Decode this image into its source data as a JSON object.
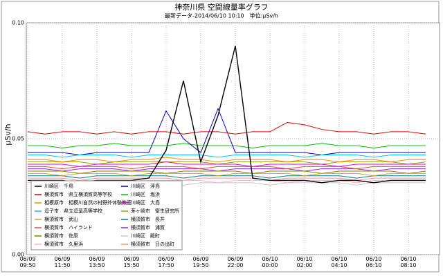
{
  "chart_data": {
    "type": "line",
    "title": "神奈川県 空間線量率グラフ",
    "subtitle": "最新データ-2014/06/10 10:10　単位:μSv/h",
    "y_label": "μSv/h",
    "x": [
      "06/09 09:50",
      null,
      "06/09 11:50",
      null,
      "06/09 13:50",
      null,
      "06/09 15:50",
      null,
      "06/09 17:50",
      null,
      "06/09 19:50",
      null,
      "06/09 22:00",
      null,
      "06/10 00:00",
      null,
      "06/10 02:00",
      null,
      "06/10 04:10",
      null,
      "06/10 06:10",
      null,
      "06/10 08:10",
      null
    ],
    "ylim": [
      0,
      0.1
    ],
    "yticks": [
      {
        "value": 0,
        "label": "0.00"
      },
      {
        "value": 0.05,
        "label": "0.05"
      },
      {
        "value": 0.1,
        "label": "0.10"
      }
    ],
    "grid": true,
    "legend": "lower-left",
    "series": [
      {
        "name": "川崎区　千鳥",
        "color": "#000000",
        "values": [
          0.032,
          0.032,
          0.032,
          0.031,
          0.032,
          0.032,
          0.032,
          0.033,
          0.045,
          0.075,
          0.04,
          0.06,
          0.09,
          0.033,
          0.032,
          0.032,
          0.032,
          0.031,
          0.032,
          0.032,
          0.031,
          0.032,
          0.032,
          0.032
        ]
      },
      {
        "name": "横須賀市　県立横須賀高等学校",
        "color": "#e00000",
        "values": [
          0.053,
          0.052,
          0.053,
          0.053,
          0.052,
          0.053,
          0.052,
          0.053,
          0.053,
          0.052,
          0.053,
          0.053,
          0.052,
          0.053,
          0.053,
          0.057,
          0.056,
          0.054,
          0.053,
          0.053,
          0.052,
          0.053,
          0.053,
          0.052
        ]
      },
      {
        "name": "相模原市　相模川自然の村野外体験教室",
        "color": "#ff8c00",
        "values": [
          0.041,
          0.041,
          0.04,
          0.041,
          0.041,
          0.04,
          0.041,
          0.041,
          0.042,
          0.041,
          0.041,
          0.04,
          0.041,
          0.041,
          0.041,
          0.04,
          0.041,
          0.041,
          0.04,
          0.041,
          0.041,
          0.04,
          0.041,
          0.041
        ]
      },
      {
        "name": "逗子市　県立逗葉高等学校",
        "color": "#00bfff",
        "values": [
          0.043,
          0.043,
          0.042,
          0.043,
          0.043,
          0.043,
          0.042,
          0.043,
          0.043,
          0.043,
          0.043,
          0.042,
          0.043,
          0.043,
          0.043,
          0.043,
          0.042,
          0.043,
          0.043,
          0.043,
          0.042,
          0.043,
          0.043,
          0.043
        ]
      },
      {
        "name": "横須賀市　武山",
        "color": "#c8a040",
        "values": [
          0.035,
          0.035,
          0.034,
          0.035,
          0.035,
          0.035,
          0.034,
          0.035,
          0.035,
          0.035,
          0.035,
          0.034,
          0.035,
          0.035,
          0.035,
          0.035,
          0.034,
          0.035,
          0.035,
          0.035,
          0.034,
          0.035,
          0.035,
          0.035
        ]
      },
      {
        "name": "横須賀市　ハイランド",
        "color": "#e05030",
        "values": [
          0.038,
          0.038,
          0.037,
          0.038,
          0.038,
          0.038,
          0.037,
          0.038,
          0.038,
          0.038,
          0.037,
          0.038,
          0.038,
          0.038,
          0.038,
          0.037,
          0.038,
          0.038,
          0.038,
          0.037,
          0.038,
          0.038,
          0.038,
          0.038
        ]
      },
      {
        "name": "横須賀市　佐原",
        "color": "#808000",
        "values": [
          0.036,
          0.036,
          0.036,
          0.035,
          0.036,
          0.036,
          0.036,
          0.036,
          0.035,
          0.036,
          0.036,
          0.036,
          0.036,
          0.035,
          0.036,
          0.036,
          0.036,
          0.035,
          0.036,
          0.036,
          0.036,
          0.036,
          0.035,
          0.036
        ]
      },
      {
        "name": "横須賀市　久里浜",
        "color": "#ffb0d0",
        "values": [
          0.032,
          0.032,
          0.031,
          0.032,
          0.032,
          0.032,
          0.031,
          0.032,
          0.032,
          0.032,
          0.032,
          0.031,
          0.032,
          0.032,
          0.032,
          0.031,
          0.032,
          0.032,
          0.032,
          0.031,
          0.032,
          0.032,
          0.032,
          0.032
        ]
      },
      {
        "name": "川崎区　浮島",
        "color": "#0000c0",
        "values": [
          0.044,
          0.044,
          0.044,
          0.043,
          0.044,
          0.044,
          0.044,
          0.044,
          0.062,
          0.05,
          0.044,
          0.063,
          0.044,
          0.044,
          0.044,
          0.044,
          0.044,
          0.043,
          0.044,
          0.044,
          0.044,
          0.044,
          0.044,
          0.044
        ]
      },
      {
        "name": "川崎区　塩浜",
        "color": "#00c000",
        "values": [
          0.047,
          0.047,
          0.046,
          0.047,
          0.047,
          0.048,
          0.047,
          0.047,
          0.047,
          0.048,
          0.047,
          0.047,
          0.047,
          0.046,
          0.047,
          0.047,
          0.047,
          0.048,
          0.047,
          0.047,
          0.046,
          0.047,
          0.047,
          0.047
        ]
      },
      {
        "name": "川崎区　大島",
        "color": "#e000e0",
        "values": [
          0.039,
          0.039,
          0.039,
          0.038,
          0.039,
          0.039,
          0.039,
          0.039,
          0.04,
          0.039,
          0.039,
          0.039,
          0.039,
          0.038,
          0.039,
          0.039,
          0.039,
          0.039,
          0.038,
          0.039,
          0.039,
          0.039,
          0.039,
          0.039
        ]
      },
      {
        "name": "茅ヶ崎市　衛生研究所",
        "color": "#a0a000",
        "values": [
          0.04,
          0.04,
          0.04,
          0.04,
          0.039,
          0.04,
          0.04,
          0.04,
          0.04,
          0.04,
          0.04,
          0.039,
          0.04,
          0.04,
          0.04,
          0.04,
          0.04,
          0.039,
          0.04,
          0.04,
          0.04,
          0.04,
          0.039,
          0.04
        ]
      },
      {
        "name": "横須賀市　長井",
        "color": "#008080",
        "values": [
          0.034,
          0.034,
          0.034,
          0.033,
          0.034,
          0.034,
          0.034,
          0.034,
          0.034,
          0.033,
          0.034,
          0.034,
          0.034,
          0.034,
          0.033,
          0.034,
          0.034,
          0.034,
          0.034,
          0.033,
          0.034,
          0.034,
          0.034,
          0.034
        ]
      },
      {
        "name": "横須賀市　浦賀",
        "color": "#a020f0",
        "values": [
          0.037,
          0.037,
          0.036,
          0.037,
          0.037,
          0.037,
          0.036,
          0.037,
          0.037,
          0.037,
          0.037,
          0.036,
          0.037,
          0.037,
          0.037,
          0.037,
          0.036,
          0.037,
          0.037,
          0.037,
          0.036,
          0.037,
          0.037,
          0.037
        ]
      },
      {
        "name": "川崎区　殿町",
        "color": "#c8c8c8",
        "values": [
          0.031,
          0.031,
          0.031,
          0.03,
          0.031,
          0.031,
          0.031,
          0.031,
          0.031,
          0.03,
          0.031,
          0.031,
          0.031,
          0.031,
          0.03,
          0.031,
          0.031,
          0.031,
          0.031,
          0.03,
          0.031,
          0.031,
          0.031,
          0.031
        ]
      },
      {
        "name": "横須賀市　日の出町",
        "color": "#ff9080",
        "values": [
          0.033,
          0.033,
          0.033,
          0.032,
          0.033,
          0.033,
          0.033,
          0.033,
          0.033,
          0.032,
          0.033,
          0.033,
          0.033,
          0.033,
          0.032,
          0.033,
          0.033,
          0.033,
          0.033,
          0.032,
          0.033,
          0.033,
          0.033,
          0.033
        ]
      }
    ]
  }
}
